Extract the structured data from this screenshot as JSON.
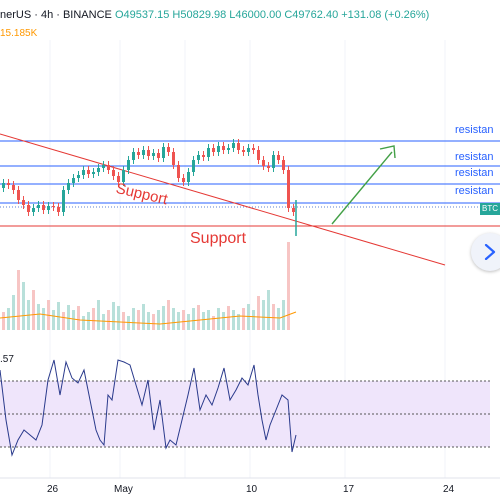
{
  "header": {
    "symbol": "nerUS · 4h · BINANCE",
    "ohlc": "O49537.15 H50829.98 L46000.00 C49762.40 +131.08 (+0.26%)",
    "volume": "15.185K"
  },
  "indicator": {
    "label": ".57"
  },
  "annotations": {
    "resistance_labels": [
      "resistan",
      "resistan",
      "resistan",
      "resistan"
    ],
    "support_diagonal": "Support",
    "support_horizontal": "Support"
  },
  "price_tag": "BTC",
  "xaxis": {
    "labels": [
      "26",
      "May",
      "10",
      "17",
      "24"
    ]
  },
  "colors": {
    "up": "#26a69a",
    "down": "#ef5350",
    "resistance": "#2962ff",
    "support": "#e53935",
    "arrow": "#43a047",
    "rsi": "#2a3a8c",
    "rsi_band": "#efe5fb"
  },
  "icons": {
    "nav": "chevron-right-icon"
  }
}
